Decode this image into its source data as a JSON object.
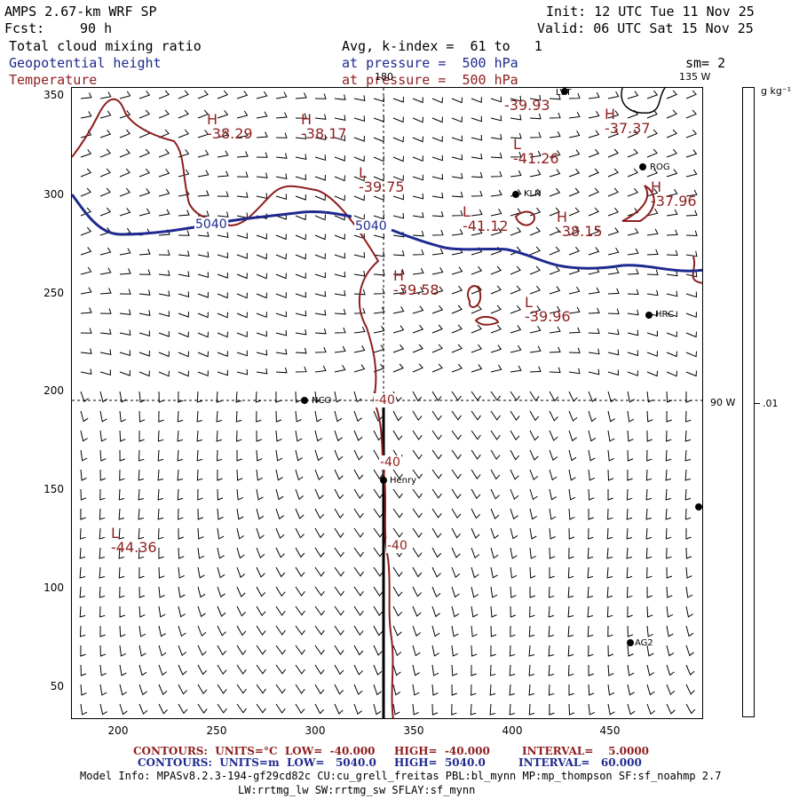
{
  "header": {
    "title": "AMPS 2.67-km WRF SP",
    "fcst_label": "Fcst:",
    "fcst_hours": "90 h",
    "init": "Init: 12 UTC Tue 11 Nov 25",
    "valid": "Valid: 06 UTC Sat 15 Nov 25",
    "field1": "Total cloud mixing ratio",
    "field2": "Geopotential height",
    "field3": "Temperature",
    "avg": "Avg, k-index =  61 to   1",
    "pressure2": "at pressure =  500 hPa",
    "pressure3": "at pressure =  500 hPa",
    "sm": "sm= 2",
    "lon_135": "135 W",
    "lon_90": "90 W",
    "lon_180": "180"
  },
  "colors": {
    "height": "#1f2a8f",
    "temperature": "#8e1e1e"
  },
  "colorbar": {
    "units": "g kg⁻¹",
    "tick": ".01"
  },
  "axes": {
    "x_ticks": [
      "200",
      "250",
      "300",
      "350",
      "400",
      "450"
    ],
    "y_ticks": [
      "350",
      "300",
      "250",
      "200",
      "150",
      "100",
      "50"
    ]
  },
  "highs_lows": [
    {
      "kind": "H",
      "value": "-38.29"
    },
    {
      "kind": "H",
      "value": "-38.17"
    },
    {
      "kind": "L",
      "value": "-39.75"
    },
    {
      "kind": "",
      "value": "-39.93"
    },
    {
      "kind": "H",
      "value": "-37.37"
    },
    {
      "kind": "L",
      "value": "-41.26"
    },
    {
      "kind": "H",
      "value": "-37.96"
    },
    {
      "kind": "L",
      "value": "-41.12"
    },
    {
      "kind": "H",
      "value": "-38.15"
    },
    {
      "kind": "H",
      "value": "-39.58"
    },
    {
      "kind": "L",
      "value": "-39.96"
    },
    {
      "kind": "L",
      "value": "-44.36"
    }
  ],
  "contour_labels": {
    "height_a": "5040",
    "height_b": "5040",
    "temp_a": "-40",
    "temp_b": "-40",
    "temp_c": "-40"
  },
  "stations": [
    "LVT",
    "ROG",
    "KLN",
    "HRC",
    "NCO",
    "Henry",
    "AG2"
  ],
  "footer": {
    "line1_label": "CONTOURS:  UNITS=°C  LOW=  -40.000",
    "line1_high": "HIGH=  -40.000",
    "line1_int": "INTERVAL=    5.0000",
    "line2_label": "CONTOURS:  UNITS=m  LOW=   5040.0",
    "line2_high": "HIGH=  5040.0",
    "line2_int": "INTERVAL=   60.000",
    "model_info": "Model Info: MPASv8.2.3-194-gf29cd82c CU:cu_grell_freitas PBL:bl_mynn MP:mp_thompson SF:sf_noahmp 2.7",
    "model_info2": "LW:rrtmg_lw SW:rrtmg_sw SFLAY:sf_mynn"
  }
}
